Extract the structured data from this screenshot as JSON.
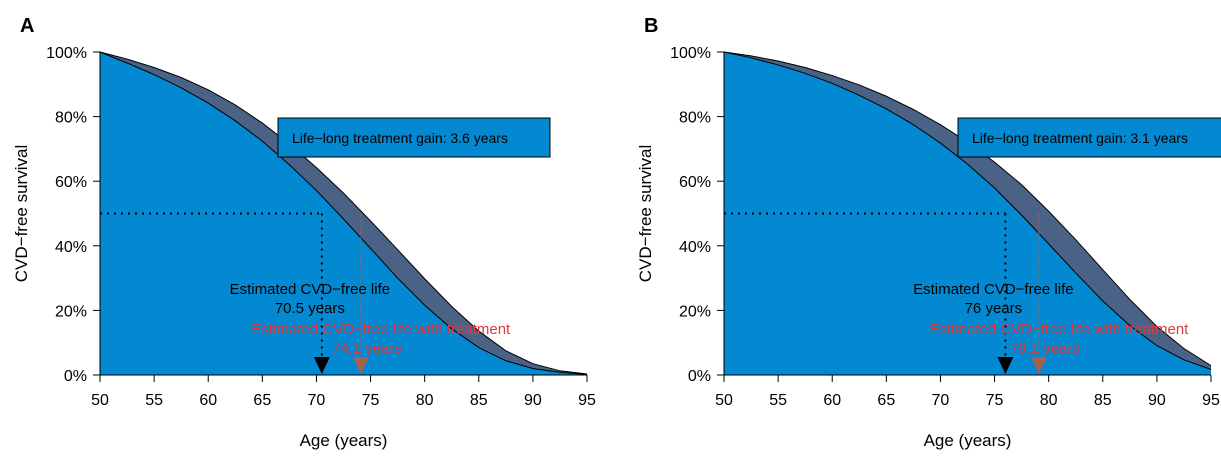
{
  "colors": {
    "area_blue": "#0389d1",
    "gain_band": "#4a6286",
    "text_red": "#e0383c",
    "arrow_brown": "#a5624a",
    "arrow_black": "#000000"
  },
  "chart_data": [
    {
      "type": "area",
      "panel_label": "A",
      "xlabel": "Age (years)",
      "ylabel": "CVD−free survival",
      "xlim": [
        50,
        95
      ],
      "ylim": [
        0,
        100
      ],
      "x_ticks": [
        50,
        55,
        60,
        65,
        70,
        75,
        80,
        85,
        90,
        95
      ],
      "y_ticks": [
        0,
        20,
        40,
        60,
        80,
        100
      ],
      "y_tick_labels": [
        "0%",
        "20%",
        "40%",
        "60%",
        "80%",
        "100%"
      ],
      "x_tick_labels": [
        "50",
        "55",
        "60",
        "65",
        "70",
        "75",
        "80",
        "85",
        "90",
        "95"
      ],
      "grid": false,
      "series": [
        {
          "x": [
            50,
            52.5,
            55,
            57.5,
            60,
            62.5,
            65,
            67.5,
            70,
            72.5,
            75,
            77.5,
            80,
            82.5,
            85,
            87.5,
            90,
            92.5,
            95
          ],
          "values": [
            100,
            97.8,
            95.2,
            92.1,
            88.3,
            83.6,
            78.0,
            71.5,
            64.2,
            56.3,
            47.7,
            38.8,
            29.8,
            21.2,
            13.6,
            7.5,
            3.5,
            1.3,
            0.3
          ]
        },
        {
          "x": [
            50,
            52.5,
            55,
            57.5,
            60,
            62.5,
            65,
            67.5,
            70,
            72.5,
            75,
            77.5,
            80,
            82.5,
            85,
            87.5,
            90,
            92.5,
            95
          ],
          "values": [
            100,
            96.6,
            93.0,
            88.9,
            84.2,
            78.7,
            72.4,
            65.1,
            57.1,
            48.3,
            39.2,
            30.0,
            21.6,
            14.3,
            8.5,
            4.4,
            2.0,
            0.8,
            0.2
          ]
        }
      ],
      "median_line_y": 50,
      "gain_label": "Life−long treatment gain: 3.6 years",
      "annotations": [
        {
          "text": "Estimated CVD−free life",
          "sub": "70.5 years",
          "x": 70.5
        },
        {
          "text": "Estimated CVD−free life with treatment",
          "sub": "74.1 years",
          "x": 74.1
        }
      ]
    },
    {
      "type": "area",
      "panel_label": "B",
      "xlabel": "Age (years)",
      "ylabel": "CVD−free survival",
      "xlim": [
        50,
        95
      ],
      "ylim": [
        0,
        100
      ],
      "x_ticks": [
        50,
        55,
        60,
        65,
        70,
        75,
        80,
        85,
        90,
        95
      ],
      "y_ticks": [
        0,
        20,
        40,
        60,
        80,
        100
      ],
      "y_tick_labels": [
        "0%",
        "20%",
        "40%",
        "60%",
        "80%",
        "100%"
      ],
      "x_tick_labels": [
        "50",
        "55",
        "60",
        "65",
        "70",
        "75",
        "80",
        "85",
        "90",
        "95"
      ],
      "grid": false,
      "series": [
        {
          "x": [
            50,
            52.5,
            55,
            57.5,
            60,
            62.5,
            65,
            67.5,
            70,
            72.5,
            75,
            77.5,
            80,
            82.5,
            85,
            87.5,
            90,
            92.5,
            95
          ],
          "values": [
            100,
            98.8,
            97.2,
            95.2,
            92.7,
            89.8,
            86.3,
            82.2,
            77.5,
            72.1,
            65.9,
            58.9,
            50.7,
            41.9,
            32.6,
            23.4,
            15.0,
            8.2,
            2.9
          ]
        },
        {
          "x": [
            50,
            52.5,
            55,
            57.5,
            60,
            62.5,
            65,
            67.5,
            70,
            72.5,
            75,
            77.5,
            80,
            82.5,
            85,
            87.5,
            90,
            92.5,
            95
          ],
          "values": [
            100,
            98.2,
            96.0,
            93.4,
            90.3,
            86.6,
            82.4,
            77.5,
            71.8,
            65.3,
            57.9,
            49.5,
            40.6,
            31.6,
            22.9,
            15.3,
            9.1,
            4.7,
            1.7
          ]
        }
      ],
      "median_line_y": 50,
      "gain_label": "Life−long treatment gain: 3.1 years",
      "annotations": [
        {
          "text": "Estimated CVD−free life",
          "sub": "76 years",
          "x": 76
        },
        {
          "text": "Estimated CVD−free life with treatment",
          "sub": "79.1 years",
          "x": 79.1
        }
      ]
    }
  ]
}
